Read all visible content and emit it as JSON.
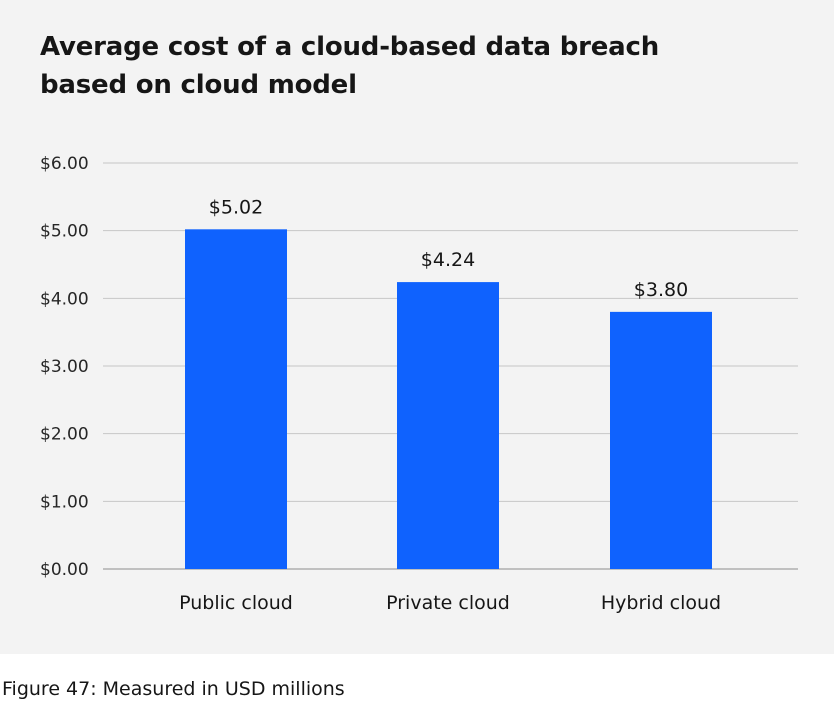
{
  "chart_data": {
    "type": "bar",
    "title": "Average cost of a cloud-based data breach based on cloud model",
    "categories": [
      "Public cloud",
      "Private cloud",
      "Hybrid cloud"
    ],
    "values": [
      5.02,
      4.24,
      3.8
    ],
    "value_labels": [
      "$5.02",
      "$4.24",
      "$3.80"
    ],
    "y_ticks": [
      0,
      1,
      2,
      3,
      4,
      5,
      6
    ],
    "y_tick_labels": [
      "$0.00",
      "$1.00",
      "$2.00",
      "$3.00",
      "$4.00",
      "$5.00",
      "$6.00"
    ],
    "ylim": [
      0,
      6
    ],
    "xlabel": "",
    "ylabel": "",
    "grid": true,
    "legend": "none",
    "bar_color": "#0f62fe"
  },
  "caption": "Figure 47: Measured in USD millions",
  "colors": {
    "card_background": "#f3f3f3",
    "bar": "#0f62fe",
    "text": "#161616",
    "grid": "#c6c6c6"
  }
}
